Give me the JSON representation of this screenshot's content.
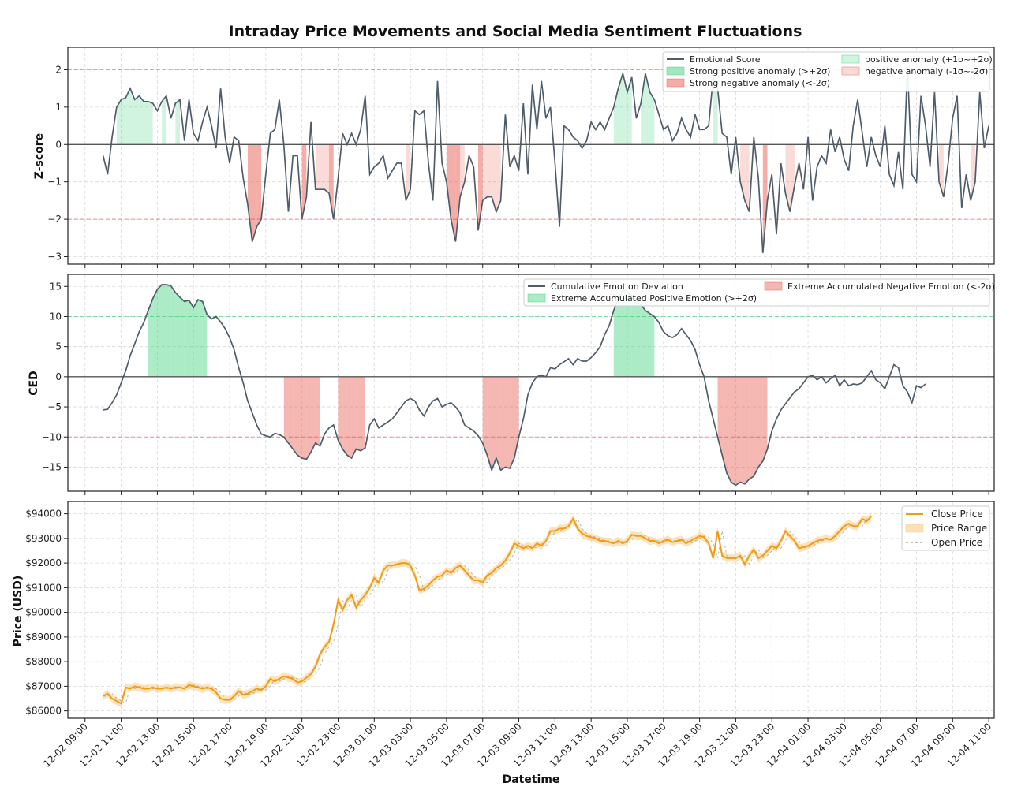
{
  "colors": {
    "line": "#4f5d6b",
    "pos_fill": "#2ecc71",
    "neg_fill": "#e74c3c",
    "pos_thresh": "#2ecc71",
    "neg_thresh": "#e74c3c",
    "price": "#f39c12",
    "price_range": "#f8c471",
    "open": "#999999",
    "grid": "#d9d9d9",
    "zero": "#555555"
  },
  "chart_data": [
    {
      "type": "line",
      "id": "zscore",
      "title": "Intraday Price Movements and Social Media Sentiment Fluctuations",
      "xlabel": "",
      "ylabel": "Z-score",
      "ylim": [
        -3.2,
        2.6
      ],
      "yticks": [
        2,
        1,
        0,
        -1,
        -2,
        -3
      ],
      "threshold_lines": [
        2,
        -2
      ],
      "legend": {
        "position": "top-right",
        "col1": [
          "Emotional Score",
          "Strong positive anomaly (>+2σ)",
          "Strong negative anomaly (<-2σ)"
        ],
        "col2": [
          "positive anomaly (+1σ~+2σ)",
          "negative anomaly (-1σ~-2σ)"
        ]
      },
      "x_start_hours": 10,
      "x_step_hours": 0.25,
      "values": [
        -0.3,
        -0.8,
        0.2,
        1.0,
        1.2,
        1.25,
        1.5,
        1.2,
        1.3,
        1.15,
        1.15,
        1.1,
        0.9,
        1.15,
        1.3,
        0.7,
        1.1,
        1.2,
        0.1,
        1.2,
        0.3,
        0.1,
        0.6,
        1.0,
        0.5,
        -0.1,
        1.5,
        0.2,
        -0.5,
        0.2,
        0.1,
        -0.9,
        -1.6,
        -2.6,
        -2.2,
        -2.0,
        -0.8,
        0.3,
        0.4,
        1.2,
        0.0,
        -1.8,
        -0.3,
        -0.3,
        -2.0,
        -1.4,
        0.6,
        -1.2,
        -1.2,
        -1.2,
        -1.3,
        -2.0,
        -0.9,
        0.3,
        0.0,
        0.3,
        0.0,
        0.4,
        1.3,
        -0.8,
        -0.6,
        -0.5,
        -0.3,
        -0.9,
        -0.7,
        -0.5,
        -0.5,
        -1.5,
        -1.2,
        0.9,
        0.8,
        0.9,
        -0.5,
        -1.5,
        1.7,
        -0.5,
        -1.0,
        -2.0,
        -2.6,
        -1.4,
        -1.0,
        -0.3,
        -0.6,
        -2.3,
        -1.5,
        -1.4,
        -1.4,
        -1.8,
        -1.5,
        0.8,
        -0.6,
        -0.3,
        -0.7,
        1.1,
        -0.8,
        1.6,
        0.4,
        1.7,
        0.7,
        1.0,
        -0.5,
        -2.2,
        0.5,
        0.4,
        0.2,
        0.1,
        -0.1,
        0.1,
        0.6,
        0.4,
        0.6,
        0.4,
        0.7,
        1.0,
        1.5,
        1.9,
        1.4,
        1.8,
        0.7,
        1.1,
        1.9,
        1.4,
        1.2,
        0.8,
        0.4,
        0.5,
        0.1,
        0.3,
        0.7,
        0.4,
        0.2,
        0.8,
        0.4,
        0.4,
        0.5,
        1.8,
        1.5,
        0.3,
        0.2,
        -0.8,
        0.2,
        -1.0,
        -1.5,
        -1.8,
        0.2,
        -0.9,
        -2.9,
        -1.5,
        -0.8,
        -2.4,
        -0.5,
        -1.3,
        -1.8,
        -1.1,
        -0.5,
        -1.2,
        0.2,
        -1.5,
        -0.6,
        -0.3,
        -0.5,
        0.4,
        -0.2,
        0.2,
        -0.4,
        -0.7,
        0.5,
        1.2,
        0.3,
        -0.6,
        0.2,
        -0.3,
        -0.6,
        0.5,
        -0.8,
        -1.1,
        -0.2,
        -1.2,
        2.1,
        -0.8,
        -1.0,
        1.3,
        0.5,
        -0.6,
        1.4,
        -1.0,
        -1.4,
        -0.5,
        0.7,
        1.3,
        -1.7,
        -0.8,
        -1.5,
        -1.0,
        1.4,
        -0.1,
        0.5
      ]
    },
    {
      "type": "line",
      "id": "ced",
      "title": "",
      "xlabel": "",
      "ylabel": "CED",
      "ylim": [
        -19,
        17
      ],
      "yticks": [
        15,
        10,
        5,
        0,
        -5,
        -10,
        -15
      ],
      "threshold_lines": [
        10,
        -10
      ],
      "legend": {
        "position": "top",
        "col1": [
          "Cumulative Emotion Deviation",
          "Extreme Accumulated Positive Emotion (>+2σ)"
        ],
        "col2": [
          "Extreme Accumulated Negative Emotion (<-2σ)"
        ]
      },
      "x_start_hours": 10,
      "x_step_hours": 0.25,
      "values": [
        -5.5,
        -5.4,
        -4.3,
        -3.0,
        -1.0,
        1.0,
        3.5,
        5.5,
        7.5,
        9.0,
        11.0,
        13.0,
        14.5,
        15.3,
        15.3,
        15.1,
        14.0,
        13.2,
        12.5,
        12.7,
        11.5,
        12.8,
        12.5,
        10.3,
        9.6,
        10.0,
        9.1,
        8.0,
        6.5,
        4.5,
        1.5,
        -1.0,
        -4.0,
        -6.0,
        -8.0,
        -9.5,
        -9.8,
        -10.0,
        -9.4,
        -9.6,
        -10.0,
        -11.0,
        -12.0,
        -13.0,
        -13.5,
        -13.7,
        -12.5,
        -11.0,
        -11.5,
        -9.5,
        -8.5,
        -8.0,
        -10.5,
        -12.0,
        -13.0,
        -13.5,
        -12.0,
        -12.3,
        -11.8,
        -8.0,
        -7.0,
        -8.5,
        -8.0,
        -7.5,
        -7.0,
        -6.0,
        -5.0,
        -4.0,
        -3.6,
        -4.0,
        -5.5,
        -6.5,
        -5.0,
        -4.0,
        -3.6,
        -5.0,
        -4.6,
        -4.3,
        -5.0,
        -6.0,
        -8.0,
        -8.5,
        -9.0,
        -9.8,
        -11.0,
        -13.0,
        -15.5,
        -13.5,
        -15.5,
        -15.0,
        -15.2,
        -13.5,
        -10.0,
        -7.0,
        -3.0,
        -1.0,
        0.0,
        0.3,
        0.0,
        1.5,
        1.3,
        2.0,
        2.5,
        3.0,
        2.0,
        3.0,
        2.6,
        2.6,
        3.2,
        4.0,
        5.0,
        7.0,
        8.5,
        11.0,
        13.0,
        14.5,
        14.0,
        13.5,
        12.5,
        12.0,
        11.0,
        10.5,
        10.0,
        9.0,
        7.5,
        6.8,
        6.5,
        7.0,
        8.0,
        7.0,
        6.0,
        4.5,
        2.0,
        0.0,
        -4.0,
        -7.0,
        -10.0,
        -13.0,
        -16.0,
        -17.5,
        -18.0,
        -17.5,
        -17.8,
        -17.0,
        -16.5,
        -15.0,
        -14.0,
        -12.0,
        -9.0,
        -7.0,
        -5.5,
        -4.5,
        -3.5,
        -2.5,
        -2.0,
        -1.0,
        0.0,
        0.2,
        -0.5,
        0.0,
        -1.0,
        -0.3,
        0.2,
        -1.5,
        -0.5,
        -1.5,
        -1.2,
        -1.3,
        -1.0,
        0.0,
        1.0,
        -0.5,
        -1.0,
        -2.0,
        0.0,
        2.0,
        1.5,
        -1.5,
        -2.5,
        -4.3,
        -1.5,
        -1.8,
        -1.2
      ]
    },
    {
      "type": "line",
      "id": "price",
      "title": "",
      "xlabel": "Datetime",
      "ylabel": "Price (USD)",
      "ylim": [
        85700,
        94500
      ],
      "yticks": [
        "$94000",
        "$93000",
        "$92000",
        "$91000",
        "$90000",
        "$89000",
        "$88000",
        "$87000",
        "$86000"
      ],
      "ytick_values": [
        94000,
        93000,
        92000,
        91000,
        90000,
        89000,
        88000,
        87000,
        86000
      ],
      "legend": {
        "position": "top-right",
        "items": [
          "Close Price",
          "Price Range",
          "Open Price"
        ]
      },
      "x_start_hours": 10,
      "x_step_hours": 0.25,
      "values": [
        86600,
        86700,
        86500,
        86400,
        86300,
        86950,
        86900,
        87000,
        86950,
        86900,
        86900,
        86950,
        86900,
        86900,
        86950,
        86900,
        86950,
        86950,
        86900,
        87050,
        87000,
        86950,
        86900,
        86950,
        86900,
        86750,
        86500,
        86450,
        86450,
        86600,
        86800,
        86650,
        86700,
        86800,
        86900,
        86850,
        87000,
        87300,
        87200,
        87300,
        87400,
        87350,
        87300,
        87150,
        87200,
        87350,
        87500,
        87800,
        88300,
        88600,
        88800,
        89500,
        90500,
        90100,
        90500,
        90700,
        90200,
        90500,
        90700,
        91000,
        91400,
        91200,
        91700,
        91900,
        91900,
        91950,
        92000,
        92000,
        91900,
        91500,
        90900,
        90950,
        91100,
        91300,
        91450,
        91500,
        91700,
        91600,
        91800,
        91900,
        91700,
        91500,
        91300,
        91300,
        91200,
        91500,
        91600,
        91800,
        91900,
        92100,
        92400,
        92800,
        92700,
        92600,
        92700,
        92600,
        92800,
        92700,
        92900,
        93300,
        93300,
        93400,
        93400,
        93500,
        93800,
        93400,
        93200,
        93100,
        93050,
        93000,
        92900,
        92900,
        92850,
        92800,
        92900,
        92800,
        92900,
        93150,
        93100,
        93100,
        93000,
        92900,
        92900,
        92800,
        92900,
        92950,
        92850,
        92900,
        92950,
        92800,
        92900,
        93000,
        93100,
        93050,
        92800,
        92200,
        93300,
        92300,
        92200,
        92200,
        92200,
        92300,
        91950,
        92300,
        92550,
        92200,
        92300,
        92500,
        92700,
        92600,
        92900,
        93300,
        93100,
        92900,
        92600,
        92650,
        92700,
        92800,
        92900,
        92950,
        93000,
        92950,
        93100,
        93300,
        93500,
        93600,
        93500,
        93500,
        93800,
        93700,
        93900
      ]
    }
  ],
  "x_axis": {
    "tick_labels": [
      "12-02 09:00",
      "12-02 11:00",
      "12-02 13:00",
      "12-02 15:00",
      "12-02 17:00",
      "12-02 19:00",
      "12-02 21:00",
      "12-02 23:00",
      "12-03 01:00",
      "12-03 03:00",
      "12-03 05:00",
      "12-03 07:00",
      "12-03 09:00",
      "12-03 11:00",
      "12-03 13:00",
      "12-03 15:00",
      "12-03 17:00",
      "12-03 19:00",
      "12-03 21:00",
      "12-03 23:00",
      "12-04 01:00",
      "12-04 03:00",
      "12-04 05:00",
      "12-04 07:00",
      "12-04 09:00",
      "12-04 11:00"
    ],
    "range_hours": [
      8.05,
      59.3
    ],
    "tick_start_hours": 9,
    "tick_step_hours": 2
  }
}
